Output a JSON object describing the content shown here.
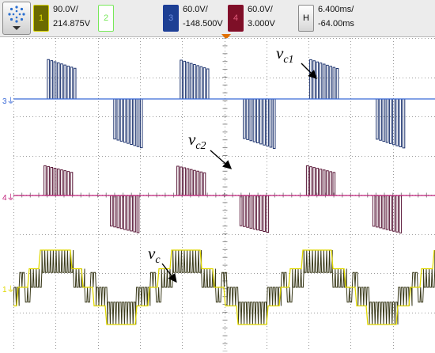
{
  "header": {
    "logo_icon": "scope-logo-icon",
    "channels": [
      {
        "number": "1",
        "scale": "90.0V/",
        "offset": "214.875V",
        "color": "#d7d200",
        "box_bg": "#6b6a00"
      },
      {
        "number": "2",
        "scale": "",
        "offset": "",
        "color": "#78e85a",
        "box_bg": "#ffffff"
      },
      {
        "number": "3",
        "scale": "60.0V/",
        "offset": "-148.500V",
        "color": "#1b3c9a",
        "box_bg": "#1d3f93"
      },
      {
        "number": "4",
        "scale": "60.0V/",
        "offset": "3.000V",
        "color": "#8a1030",
        "box_bg": "#7e0f27"
      }
    ],
    "timebase": {
      "label": "H",
      "scale": "6.400ms/",
      "offset": "-64.00ms"
    },
    "trigger_marker_color": "#e07000"
  },
  "plot": {
    "grid_divisions_x": 10,
    "grid_divisions_y": 8,
    "markers": [
      {
        "label": "3",
        "color": "#3a6ad8"
      },
      {
        "label": "4",
        "color": "#c0207a"
      },
      {
        "label": "1",
        "color": "#e0d800"
      }
    ],
    "annotations": [
      {
        "base": "v",
        "sub": "c1"
      },
      {
        "base": "v",
        "sub": "c2"
      },
      {
        "base": "v",
        "sub": "c"
      }
    ]
  }
}
